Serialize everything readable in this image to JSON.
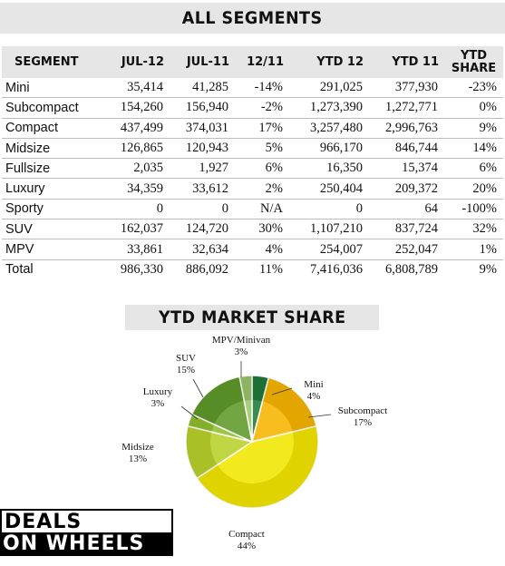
{
  "header": {
    "title": "ALL SEGMENTS"
  },
  "table": {
    "columns": [
      "SEGMENT",
      "JUL-12",
      "JUL-11",
      "12/11",
      "YTD 12",
      "YTD 11",
      "YTD SHARE"
    ],
    "rows": [
      [
        "Mini",
        "35,414",
        "41,285",
        "-14%",
        "291,025",
        "377,930",
        "-23%"
      ],
      [
        "Subcompact",
        "154,260",
        "156,940",
        "-2%",
        "1,273,390",
        "1,272,771",
        "0%"
      ],
      [
        "Compact",
        "437,499",
        "374,031",
        "17%",
        "3,257,480",
        "2,996,763",
        "9%"
      ],
      [
        "Midsize",
        "126,865",
        "120,943",
        "5%",
        "966,170",
        "846,744",
        "14%"
      ],
      [
        "Fullsize",
        "2,035",
        "1,927",
        "6%",
        "16,350",
        "15,374",
        "6%"
      ],
      [
        "Luxury",
        "34,359",
        "33,612",
        "2%",
        "250,404",
        "209,372",
        "20%"
      ],
      [
        "Sporty",
        "0",
        "0",
        "N/A",
        "0",
        "64",
        "-100%"
      ],
      [
        "SUV",
        "162,037",
        "124,720",
        "30%",
        "1,107,210",
        "837,724",
        "32%"
      ],
      [
        "MPV",
        "33,861",
        "32,634",
        "4%",
        "254,007",
        "252,047",
        "1%"
      ],
      [
        "Total",
        "986,330",
        "886,092",
        "11%",
        "7,416,036",
        "6,808,789",
        "9%"
      ]
    ]
  },
  "chart_data": {
    "type": "pie",
    "title": "YTD MARKET SHARE",
    "slices": [
      {
        "label": "Mini",
        "value": 4,
        "display": "4%",
        "color": "#1f7a3a"
      },
      {
        "label": "Subcompact",
        "value": 17,
        "display": "17%",
        "color": "#f7b500"
      },
      {
        "label": "Compact",
        "value": 44,
        "display": "44%",
        "color": "#f2e600"
      },
      {
        "label": "Midsize",
        "value": 13,
        "display": "13%",
        "color": "#b9d12a"
      },
      {
        "label": "Luxury",
        "value": 3,
        "display": "3%",
        "color": "#8fbf2c"
      },
      {
        "label": "SUV",
        "value": 15,
        "display": "15%",
        "color": "#5e9a2a"
      },
      {
        "label": "MPV/Minivan",
        "value": 3,
        "display": "3%",
        "color": "#9cc46a"
      }
    ]
  },
  "logo": {
    "line1": "DEALS",
    "line2": "ON WHEELS"
  }
}
